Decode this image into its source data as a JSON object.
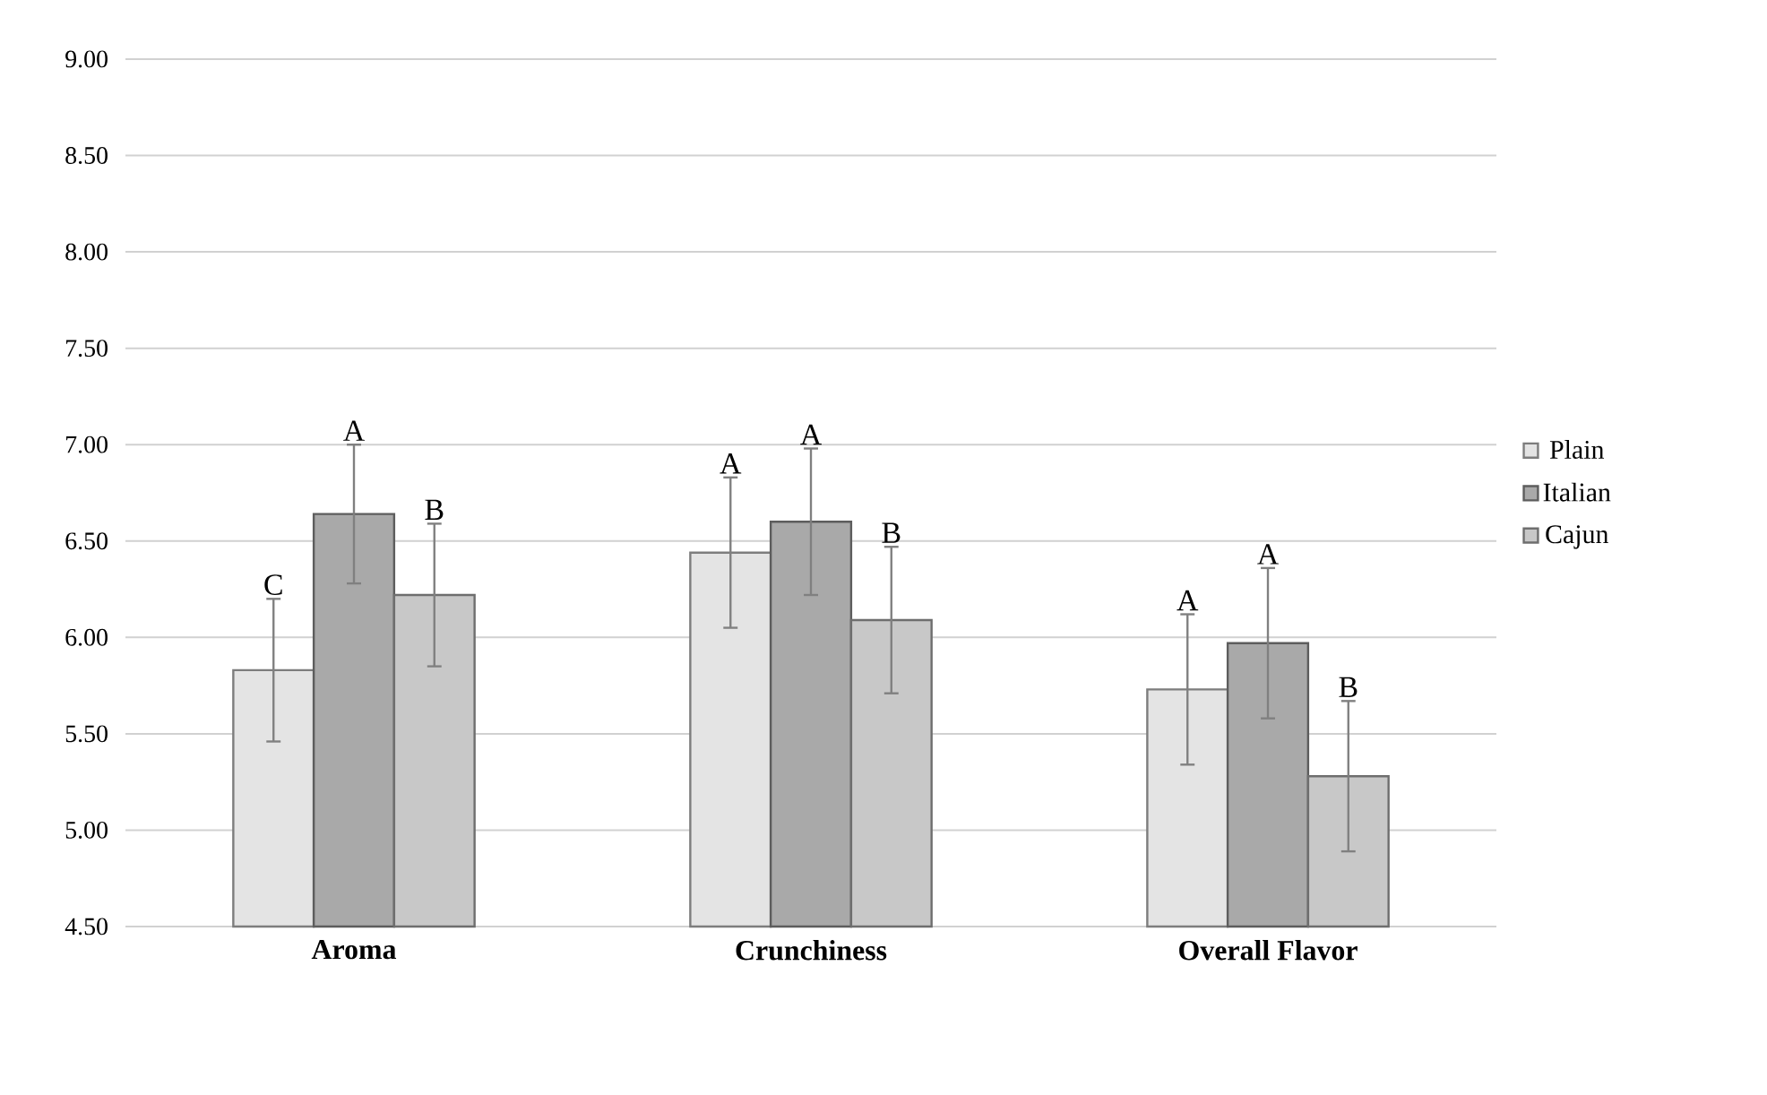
{
  "chart_data": {
    "type": "bar",
    "categories": [
      "Aroma",
      "Crunchiness",
      "Overall Flavor"
    ],
    "series": [
      {
        "name": "Plain",
        "color": "#e4e4e4",
        "values": [
          5.83,
          6.44,
          5.73
        ],
        "errors": [
          0.37,
          0.39,
          0.39
        ]
      },
      {
        "name": "Italian",
        "color": "#a9a9a9",
        "values": [
          6.64,
          6.6,
          5.97
        ],
        "errors": [
          0.36,
          0.38,
          0.39
        ]
      },
      {
        "name": "Cajun",
        "color": "#c8c8c8",
        "values": [
          6.22,
          6.09,
          5.28
        ],
        "errors": [
          0.37,
          0.38,
          0.39
        ]
      }
    ],
    "ylim": [
      4.5,
      9.0
    ],
    "yticks": [
      {
        "value": 4.5,
        "label": "4.50"
      },
      {
        "value": 5.0,
        "label": "5.00"
      },
      {
        "value": 5.5,
        "label": "5.50"
      },
      {
        "value": 6.0,
        "label": "6.00"
      },
      {
        "value": 6.5,
        "label": "6.50"
      },
      {
        "value": 7.0,
        "label": "7.00"
      },
      {
        "value": 7.5,
        "label": "7.50"
      },
      {
        "value": 8.0,
        "label": "8.00"
      },
      {
        "value": 8.5,
        "label": "8.50"
      },
      {
        "value": 9.0,
        "label": "9.00"
      }
    ],
    "grid": "y",
    "legend": "right",
    "annotations": [
      "C",
      "A",
      "B",
      "A",
      "A",
      "B",
      "A",
      "A",
      "B"
    ]
  }
}
